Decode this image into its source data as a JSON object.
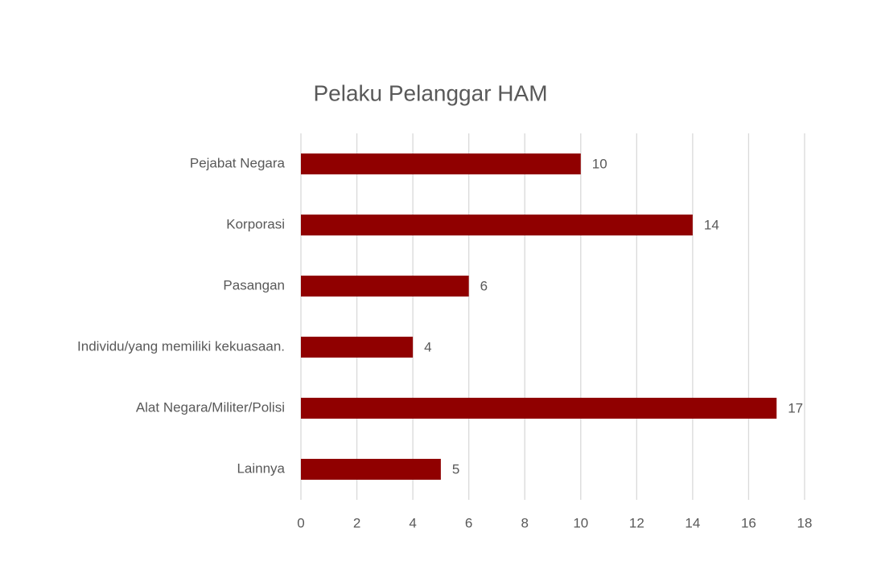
{
  "chart_data": {
    "type": "bar",
    "orientation": "horizontal",
    "title": "Pelaku Pelanggar HAM",
    "categories": [
      "Pejabat Negara",
      "Korporasi",
      "Pasangan",
      "Individu/yang memiliki kekuasaan.",
      "Alat Negara/Militer/Polisi",
      "Lainnya"
    ],
    "values": [
      10,
      14,
      6,
      4,
      17,
      5
    ],
    "color": "#900000",
    "xlim": [
      0,
      18
    ],
    "xticks": [
      0,
      2,
      4,
      6,
      8,
      10,
      12,
      14,
      16,
      18
    ],
    "grid": true
  }
}
